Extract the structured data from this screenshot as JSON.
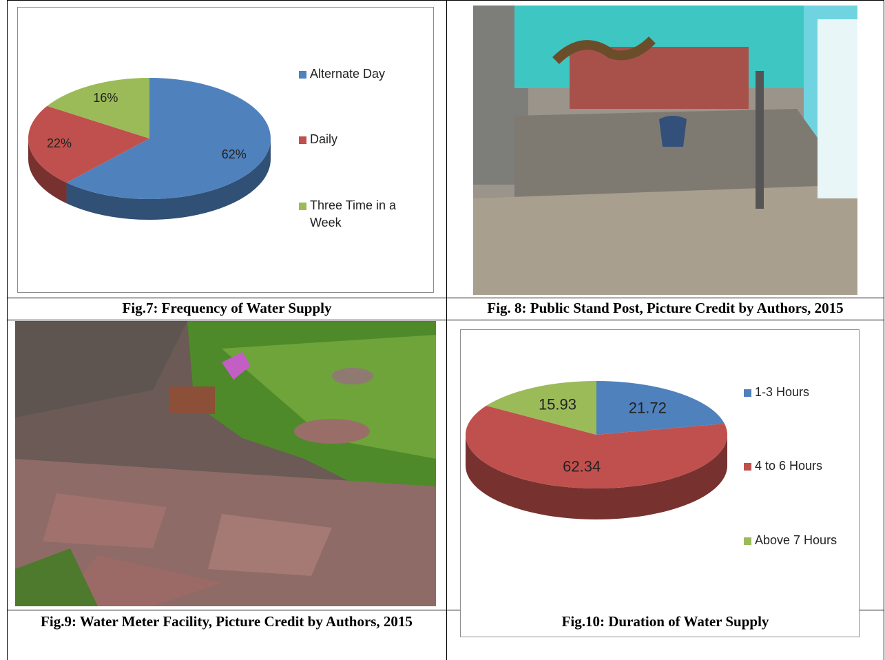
{
  "chart_data": [
    {
      "type": "pie",
      "categories": [
        "Alternate Day",
        "Daily",
        "Three Time in a Week"
      ],
      "values": [
        62,
        22,
        16
      ],
      "value_labels": [
        "62%",
        "22%",
        "16%"
      ],
      "colors": [
        "#4f81bd",
        "#c0504d",
        "#9bbb59"
      ]
    },
    {
      "type": "pie",
      "categories": [
        "1-3 Hours",
        "4 to 6 Hours",
        "Above 7 Hours"
      ],
      "values": [
        21.72,
        62.34,
        15.93
      ],
      "colors": [
        "#4f81bd",
        "#c0504d",
        "#9bbb59"
      ]
    }
  ],
  "captions": [
    "Fig.7: Frequency of Water Supply",
    "Fig. 8: Public Stand Post, Picture Credit by Authors, 2015",
    "Fig.9: Water Meter Facility, Picture Credit by Authors, 2015",
    "Fig.10: Duration of Water Supply"
  ]
}
